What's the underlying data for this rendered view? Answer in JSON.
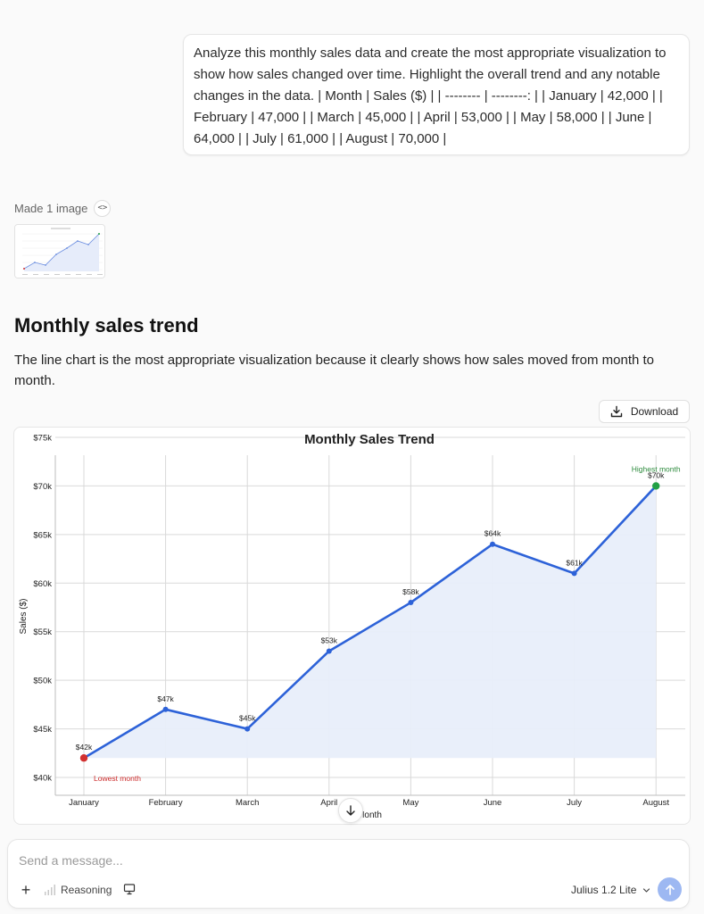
{
  "user_message": "Analyze this monthly sales data and create the most appropriate visualization to show how sales changed over time. Highlight the overall trend and any notable changes in the data. | Month | Sales ($) | | -------- | --------: | | January | 42,000 | | February | 47,000 | | March | 45,000 | | April | 53,000 | | May | 58,000 | | June | 64,000 | | July | 61,000 | | August | 70,000 |",
  "assistant": {
    "made_label": "Made 1 image",
    "code_icon": "code-icon",
    "heading": "Monthly sales trend",
    "paragraph": "The line chart is the most appropriate visualization because it clearly shows how sales moved from month to month.",
    "download_label": "Download"
  },
  "chart_data": {
    "type": "line",
    "title": "Monthly Sales Trend",
    "xlabel": "Month",
    "ylabel": "Sales ($)",
    "categories": [
      "January",
      "February",
      "March",
      "April",
      "May",
      "June",
      "July",
      "August"
    ],
    "series": [
      {
        "values": [
          42000,
          47000,
          45000,
          53000,
          58000,
          64000,
          61000,
          70000
        ],
        "color": "#2d62d8"
      }
    ],
    "data_labels": [
      "$42k",
      "$47k",
      "$45k",
      "$53k",
      "$58k",
      "$64k",
      "$61k",
      "$70k"
    ],
    "ylim": [
      40000,
      75000
    ],
    "yticks": [
      40000,
      45000,
      50000,
      55000,
      60000,
      65000,
      70000,
      75000
    ],
    "ytick_labels": [
      "$40k",
      "$45k",
      "$50k",
      "$55k",
      "$60k",
      "$65k",
      "$70k",
      "$75k"
    ],
    "grid": true,
    "fill_under_line": true,
    "annotations": [
      {
        "text": "Lowest month",
        "index": 0,
        "color": "#cc2b2b"
      },
      {
        "text": "Highest month",
        "index": 7,
        "color": "#2e8b3e"
      }
    ]
  },
  "composer": {
    "placeholder": "Send a message...",
    "value": "",
    "reasoning_label": "Reasoning",
    "model_label": "Julius 1.2 Lite"
  },
  "colors": {
    "line": "#2d62d8",
    "fill": "#e8eefa",
    "lowest_marker": "#d23030",
    "highest_marker": "#22a045",
    "send_button": "#9db8f2"
  }
}
